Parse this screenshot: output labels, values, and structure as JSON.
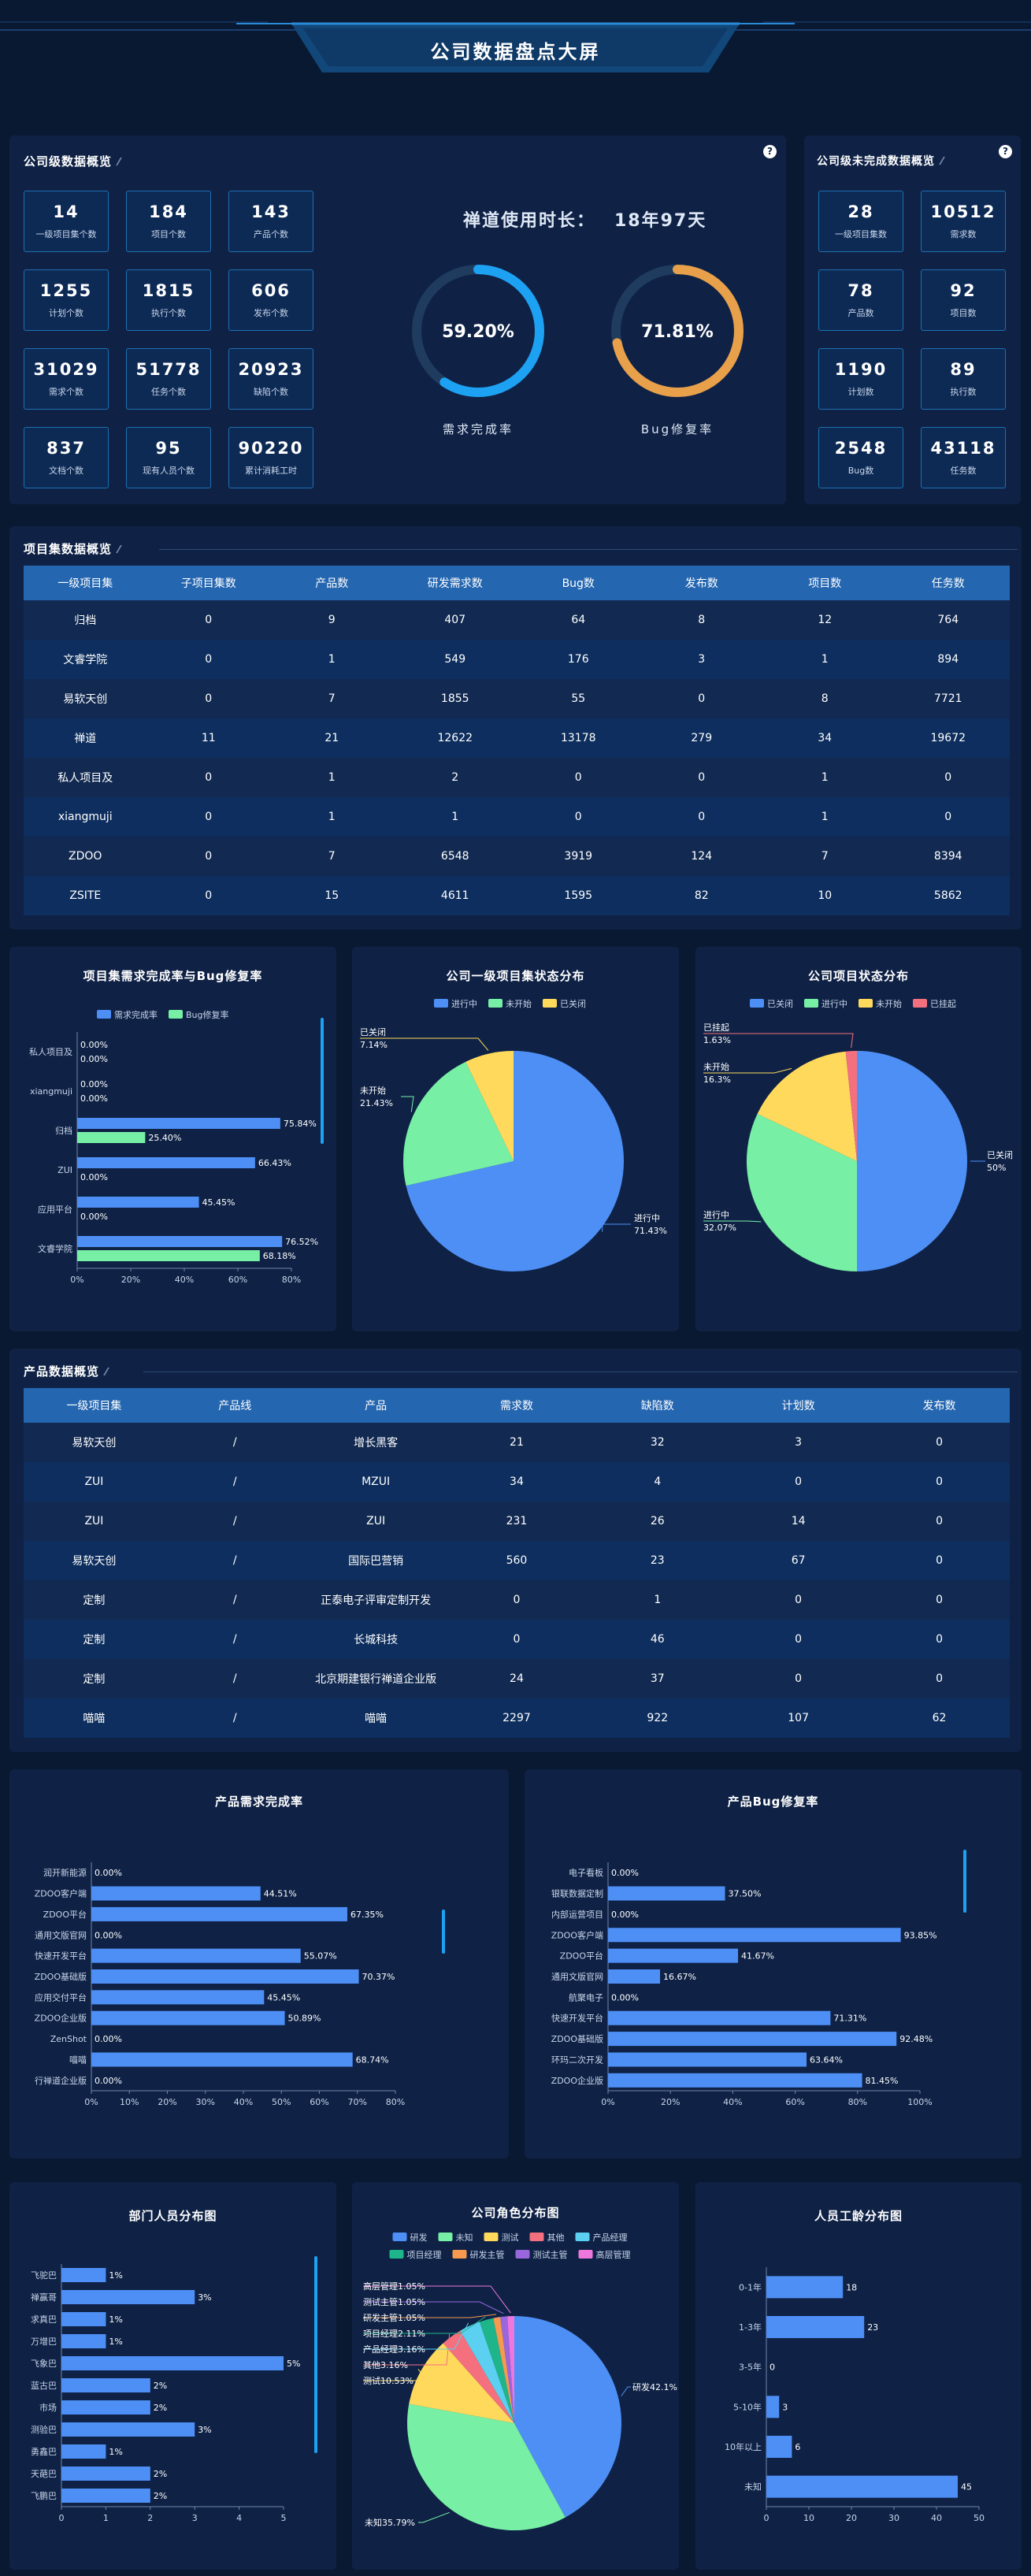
{
  "header": {
    "title": "公司数据盘点大屏"
  },
  "company_overview": {
    "title": "公司级数据概览",
    "stats": [
      {
        "value": "14",
        "label": "一级项目集个数"
      },
      {
        "value": "184",
        "label": "项目个数"
      },
      {
        "value": "143",
        "label": "产品个数"
      },
      {
        "value": "1255",
        "label": "计划个数"
      },
      {
        "value": "1815",
        "label": "执行个数"
      },
      {
        "value": "606",
        "label": "发布个数"
      },
      {
        "value": "31029",
        "label": "需求个数"
      },
      {
        "value": "51778",
        "label": "任务个数"
      },
      {
        "value": "20923",
        "label": "缺陷个数"
      },
      {
        "value": "837",
        "label": "文档个数"
      },
      {
        "value": "95",
        "label": "现有人员个数"
      },
      {
        "value": "90220",
        "label": "累计消耗工时"
      }
    ],
    "usage_label": "禅道使用时长：",
    "usage_value": "18年97天",
    "gauges": [
      {
        "value": "59.20%",
        "fraction": 0.592,
        "label": "需求完成率",
        "color": "#1da1f2"
      },
      {
        "value": "71.81%",
        "fraction": 0.7181,
        "label": "Bug修复率",
        "color": "#e8a04a"
      }
    ]
  },
  "unfinished_overview": {
    "title": "公司级未完成数据概览",
    "stats": [
      {
        "value": "28",
        "label": "一级项目集数"
      },
      {
        "value": "10512",
        "label": "需求数"
      },
      {
        "value": "78",
        "label": "产品数"
      },
      {
        "value": "92",
        "label": "项目数"
      },
      {
        "value": "1190",
        "label": "计划数"
      },
      {
        "value": "89",
        "label": "执行数"
      },
      {
        "value": "2548",
        "label": "Bug数"
      },
      {
        "value": "43118",
        "label": "任务数"
      }
    ]
  },
  "program_overview": {
    "title": "项目集数据概览",
    "headers": [
      "一级项目集",
      "子项目集数",
      "产品数",
      "研发需求数",
      "Bug数",
      "发布数",
      "项目数",
      "任务数"
    ],
    "rows": [
      [
        "归档",
        "0",
        "9",
        "407",
        "64",
        "8",
        "12",
        "764"
      ],
      [
        "文睿学院",
        "0",
        "1",
        "549",
        "176",
        "3",
        "1",
        "894"
      ],
      [
        "易软天创",
        "0",
        "7",
        "1855",
        "55",
        "0",
        "8",
        "7721"
      ],
      [
        "禅道",
        "11",
        "21",
        "12622",
        "13178",
        "279",
        "34",
        "19672"
      ],
      [
        "私人项目及",
        "0",
        "1",
        "2",
        "0",
        "0",
        "1",
        "0"
      ],
      [
        "xiangmuji",
        "0",
        "1",
        "1",
        "0",
        "0",
        "1",
        "0"
      ],
      [
        "ZDOO",
        "0",
        "7",
        "6548",
        "3919",
        "124",
        "7",
        "8394"
      ],
      [
        "ZSITE",
        "0",
        "15",
        "4611",
        "1595",
        "82",
        "10",
        "5862"
      ]
    ]
  },
  "product_overview": {
    "title": "产品数据概览",
    "headers": [
      "一级项目集",
      "产品线",
      "产品",
      "需求数",
      "缺陷数",
      "计划数",
      "发布数"
    ],
    "rows": [
      [
        "易软天创",
        "/",
        "增长黑客",
        "21",
        "32",
        "3",
        "0"
      ],
      [
        "ZUI",
        "/",
        "MZUI",
        "34",
        "4",
        "0",
        "0"
      ],
      [
        "ZUI",
        "/",
        "ZUI",
        "231",
        "26",
        "14",
        "0"
      ],
      [
        "易软天创",
        "/",
        "国际巴营销",
        "560",
        "23",
        "67",
        "0"
      ],
      [
        "定制",
        "/",
        "正泰电子评审定制开发",
        "0",
        "1",
        "0",
        "0"
      ],
      [
        "定制",
        "/",
        "长城科技",
        "0",
        "46",
        "0",
        "0"
      ],
      [
        "定制",
        "/",
        "北京期建银行禅道企业版",
        "24",
        "37",
        "0",
        "0"
      ],
      [
        "喵喵",
        "/",
        "喵喵",
        "2297",
        "922",
        "107",
        "62"
      ]
    ]
  },
  "chart_data": [
    {
      "id": "program_completion",
      "type": "bar",
      "orientation": "horizontal",
      "title": "项目集需求完成率与Bug修复率",
      "categories": [
        "私人项目及",
        "xiangmuji",
        "归档",
        "ZUI",
        "应用平台",
        "文睿学院"
      ],
      "series": [
        {
          "name": "需求完成率",
          "values": [
            0,
            0,
            75.84,
            66.43,
            45.45,
            76.52
          ],
          "color": "#4e8ff5"
        },
        {
          "name": "Bug修复率",
          "values": [
            0,
            0,
            25.4,
            0,
            0,
            68.18
          ],
          "color": "#77f0a5"
        }
      ],
      "xlim": [
        0,
        80
      ],
      "ticks": [
        "0%",
        "20%",
        "40%",
        "60%",
        "80%"
      ],
      "legend": "top"
    },
    {
      "id": "program_status",
      "type": "pie",
      "title": "公司一级项目集状态分布",
      "slices": [
        {
          "name": "进行中",
          "value": 71.43,
          "label": "71.43%",
          "color": "#4e8ff5"
        },
        {
          "name": "未开始",
          "value": 21.43,
          "label": "21.43%",
          "color": "#77f0a5"
        },
        {
          "name": "已关闭",
          "value": 7.14,
          "label": "7.14%",
          "color": "#ffd95c"
        }
      ],
      "legend": "top"
    },
    {
      "id": "project_status",
      "type": "pie",
      "title": "公司项目状态分布",
      "slices": [
        {
          "name": "已关闭",
          "value": 50,
          "label": "50%",
          "color": "#4e8ff5"
        },
        {
          "name": "进行中",
          "value": 32.07,
          "label": "32.07%",
          "color": "#77f0a5"
        },
        {
          "name": "未开始",
          "value": 16.3,
          "label": "16.3%",
          "color": "#ffd95c"
        },
        {
          "name": "已挂起",
          "value": 1.63,
          "label": "1.63%",
          "color": "#f4707e"
        }
      ],
      "legend": "top"
    },
    {
      "id": "product_story_completion",
      "type": "bar",
      "orientation": "horizontal",
      "title": "产品需求完成率",
      "categories": [
        "润开新能源",
        "ZDOO客户端",
        "ZDOO平台",
        "通用文版官网",
        "快速开发平台",
        "ZDOO基础版",
        "应用交付平台",
        "ZDOO企业版",
        "ZenShot",
        "喵喵",
        "行禅道企业版"
      ],
      "values": [
        0,
        44.51,
        67.35,
        0,
        55.07,
        70.37,
        45.45,
        50.89,
        0,
        68.74,
        0
      ],
      "labels": [
        "0.00%",
        "44.51%",
        "67.35%",
        "0.00%",
        "55.07%",
        "70.37%",
        "45.45%",
        "50.89%",
        "0.00%",
        "68.74%",
        "0.00%"
      ],
      "xlim": [
        0,
        80
      ],
      "ticks": [
        "0%",
        "10%",
        "20%",
        "30%",
        "40%",
        "50%",
        "60%",
        "70%",
        "80%"
      ]
    },
    {
      "id": "product_bug_fix",
      "type": "bar",
      "orientation": "horizontal",
      "title": "产品Bug修复率",
      "categories": [
        "电子看板",
        "银联数据定制",
        "内部运营项目",
        "ZDOO客户端",
        "ZDOO平台",
        "通用文版官网",
        "航聚电子",
        "快速开发平台",
        "ZDOO基础版",
        "环玛二次开发",
        "ZDOO企业版"
      ],
      "values": [
        0,
        37.5,
        0,
        93.85,
        41.67,
        16.67,
        0,
        71.31,
        92.48,
        63.64,
        81.45
      ],
      "labels": [
        "0.00%",
        "37.50%",
        "0.00%",
        "93.85%",
        "41.67%",
        "16.67%",
        "0.00%",
        "71.31%",
        "92.48%",
        "63.64%",
        "81.45%"
      ],
      "xlim": [
        0,
        100
      ],
      "ticks": [
        "0%",
        "20%",
        "40%",
        "60%",
        "80%",
        "100%"
      ]
    },
    {
      "id": "dept_people",
      "type": "bar",
      "orientation": "horizontal",
      "title": "部门人员分布图",
      "categories": [
        "飞驼巴",
        "禅赢哥",
        "求真巴",
        "万增巴",
        "飞象巴",
        "蓝古巴",
        "市场",
        "测验巴",
        "勇鑫巴",
        "天葩巴",
        "飞鹏巴"
      ],
      "values": [
        1,
        3,
        1,
        1,
        5,
        2,
        2,
        3,
        1,
        2,
        2
      ],
      "xlim": [
        0,
        5
      ],
      "ticks": [
        "0",
        "1",
        "2",
        "3",
        "4",
        "5"
      ]
    },
    {
      "id": "role_dist",
      "type": "pie",
      "title": "公司角色分布图",
      "slices": [
        {
          "name": "研发",
          "value": 42.1,
          "label": "研发42.1%",
          "color": "#4e8ff5"
        },
        {
          "name": "未知",
          "value": 35.79,
          "label": "未知35.79%",
          "color": "#77f0a5"
        },
        {
          "name": "测试",
          "value": 10.53,
          "label": "测试10.53%",
          "color": "#ffd95c"
        },
        {
          "name": "其他",
          "value": 3.16,
          "label": "其他3.16%",
          "color": "#f4707e"
        },
        {
          "name": "产品经理",
          "value": 3.16,
          "label": "产品经理3.16%",
          "color": "#5bd0f0"
        },
        {
          "name": "项目经理",
          "value": 2.11,
          "label": "项目经理2.11%",
          "color": "#1fb58a"
        },
        {
          "name": "研发主管",
          "value": 1.05,
          "label": "研发主管1.05%",
          "color": "#f59a4f"
        },
        {
          "name": "测试主管",
          "value": 1.05,
          "label": "测试主管1.05%",
          "color": "#9966dd"
        },
        {
          "name": "高层管理",
          "value": 1.05,
          "label": "高层管理1.05%",
          "color": "#ee77dd"
        }
      ],
      "legend": "top"
    },
    {
      "id": "work_years",
      "type": "bar",
      "orientation": "horizontal",
      "title": "人员工龄分布图",
      "categories": [
        "0-1年",
        "1-3年",
        "3-5年",
        "5-10年",
        "10年以上",
        "未知"
      ],
      "values": [
        18,
        23,
        0,
        3,
        6,
        45
      ],
      "xlim": [
        0,
        50
      ],
      "ticks": [
        "0",
        "10",
        "20",
        "30",
        "40",
        "50"
      ]
    }
  ]
}
